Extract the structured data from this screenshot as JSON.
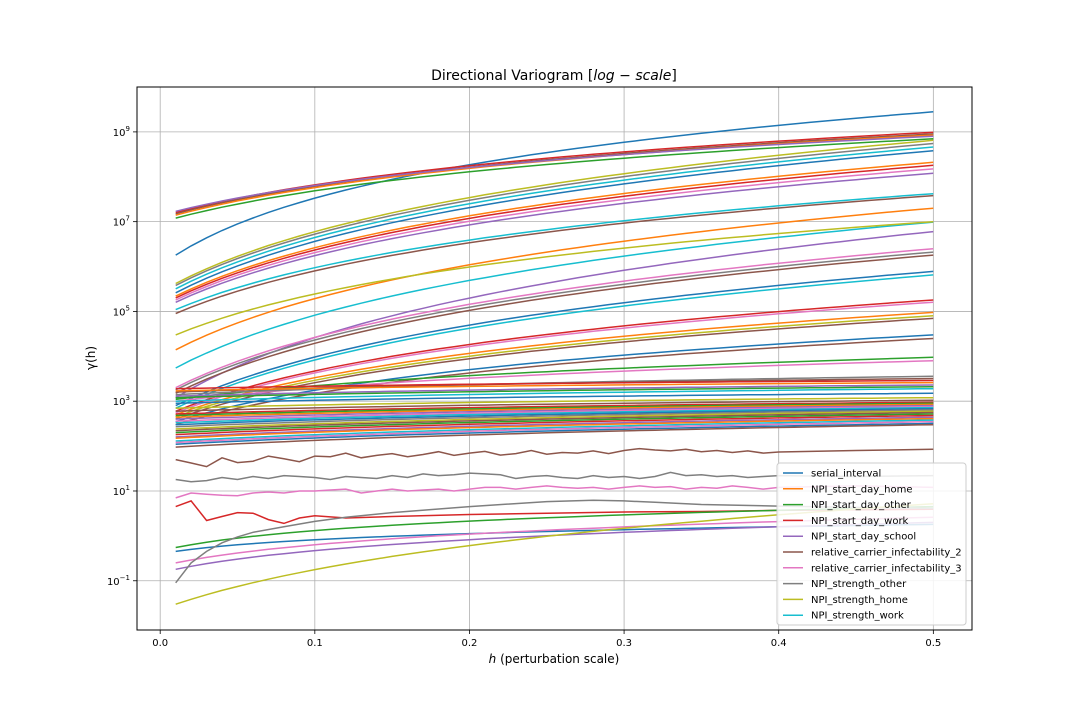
{
  "chart_data": {
    "type": "line",
    "title": "Directional Variogram [log − scale]",
    "title_prefix": "Directional Variogram [",
    "title_math": "log − scale",
    "title_suffix": "]",
    "xlabel": "h (perturbation scale)",
    "xlabel_math": "h",
    "xlabel_rest": " (perturbation scale)",
    "ylabel": "γ(h)",
    "yscale": "log",
    "xlim": [
      -0.015,
      0.525
    ],
    "ylim": [
      0.008,
      10000000000
    ],
    "grid": true,
    "legend_position": "lower-right",
    "x_ticks": [
      {
        "value": 0.0,
        "label": "0.0"
      },
      {
        "value": 0.1,
        "label": "0.1"
      },
      {
        "value": 0.2,
        "label": "0.2"
      },
      {
        "value": 0.3,
        "label": "0.3"
      },
      {
        "value": 0.4,
        "label": "0.4"
      },
      {
        "value": 0.5,
        "label": "0.5"
      }
    ],
    "y_ticks": [
      {
        "value": 0.1,
        "base": "10",
        "exp": "−1"
      },
      {
        "value": 10,
        "base": "10",
        "exp": "1"
      },
      {
        "value": 1000,
        "base": "10",
        "exp": "3"
      },
      {
        "value": 100000,
        "base": "10",
        "exp": "5"
      },
      {
        "value": 10000000,
        "base": "10",
        "exp": "7"
      },
      {
        "value": 1000000000,
        "base": "10",
        "exp": "9"
      }
    ],
    "legend": [
      {
        "name": "serial_interval",
        "color": "#1f77b4"
      },
      {
        "name": "NPI_start_day_home",
        "color": "#ff7f0e"
      },
      {
        "name": "NPI_start_day_other",
        "color": "#2ca02c"
      },
      {
        "name": "NPI_start_day_work",
        "color": "#d62728"
      },
      {
        "name": "NPI_start_day_school",
        "color": "#9467bd"
      },
      {
        "name": "relative_carrier_infectability_2",
        "color": "#8c564b"
      },
      {
        "name": "relative_carrier_infectability_3",
        "color": "#e377c2"
      },
      {
        "name": "NPI_strength_other",
        "color": "#7f7f7f"
      },
      {
        "name": "NPI_strength_home",
        "color": "#bcbd22"
      },
      {
        "name": "NPI_strength_work",
        "color": "#17becf"
      }
    ],
    "series": [
      {
        "color": "#1f77b4",
        "kind": "smooth",
        "y_start": 1800000,
        "y_end": 2800000000,
        "shape": 0.07
      },
      {
        "color": "#d62728",
        "kind": "smooth",
        "y_start": 16000000,
        "y_end": 980000000,
        "shape": 0.12
      },
      {
        "color": "#8c564b",
        "kind": "smooth",
        "y_start": 15000000,
        "y_end": 900000000,
        "shape": 0.12
      },
      {
        "color": "#ff7f0e",
        "kind": "smooth",
        "y_start": 14000000,
        "y_end": 850000000,
        "shape": 0.12
      },
      {
        "color": "#9467bd",
        "kind": "smooth",
        "y_start": 17000000,
        "y_end": 800000000,
        "shape": 0.12
      },
      {
        "color": "#2ca02c",
        "kind": "smooth",
        "y_start": 12000000,
        "y_end": 700000000,
        "shape": 0.12
      },
      {
        "color": "#bcbd22",
        "kind": "smooth",
        "y_start": 420000,
        "y_end": 650000000,
        "shape": 0.1
      },
      {
        "color": "#7f7f7f",
        "kind": "smooth",
        "y_start": 380000,
        "y_end": 550000000,
        "shape": 0.1
      },
      {
        "color": "#17becf",
        "kind": "smooth",
        "y_start": 320000,
        "y_end": 460000000,
        "shape": 0.1
      },
      {
        "color": "#1f77b4",
        "kind": "smooth",
        "y_start": 260000,
        "y_end": 380000000,
        "shape": 0.1
      },
      {
        "color": "#ff7f0e",
        "kind": "smooth",
        "y_start": 220000,
        "y_end": 210000000,
        "shape": 0.1
      },
      {
        "color": "#d62728",
        "kind": "smooth",
        "y_start": 200000,
        "y_end": 180000000,
        "shape": 0.1
      },
      {
        "color": "#e377c2",
        "kind": "smooth",
        "y_start": 180000,
        "y_end": 150000000,
        "shape": 0.1
      },
      {
        "color": "#9467bd",
        "kind": "smooth",
        "y_start": 160000,
        "y_end": 120000000,
        "shape": 0.1
      },
      {
        "color": "#17becf",
        "kind": "smooth",
        "y_start": 110000,
        "y_end": 42000000,
        "shape": 0.1
      },
      {
        "color": "#8c564b",
        "kind": "smooth",
        "y_start": 90000,
        "y_end": 38000000,
        "shape": 0.1
      },
      {
        "color": "#ff7f0e",
        "kind": "smooth",
        "y_start": 14000,
        "y_end": 20000000,
        "shape": 0.1
      },
      {
        "color": "#17becf",
        "kind": "smooth",
        "y_start": 5500,
        "y_end": 9800000,
        "shape": 0.1
      },
      {
        "color": "#bcbd22",
        "kind": "smooth",
        "y_start": 30000,
        "y_end": 10000000,
        "shape": 0.1
      },
      {
        "color": "#9467bd",
        "kind": "smooth",
        "y_start": 1200,
        "y_end": 6000000,
        "shape": 0.1
      },
      {
        "color": "#e377c2",
        "kind": "smooth",
        "y_start": 2000,
        "y_end": 2500000,
        "shape": 0.1
      },
      {
        "color": "#7f7f7f",
        "kind": "smooth",
        "y_start": 1800,
        "y_end": 2100000,
        "shape": 0.1
      },
      {
        "color": "#8c564b",
        "kind": "smooth",
        "y_start": 1500,
        "y_end": 1800000,
        "shape": 0.1
      },
      {
        "color": "#1f77b4",
        "kind": "smooth",
        "y_start": 800,
        "y_end": 780000,
        "shape": 0.1
      },
      {
        "color": "#17becf",
        "kind": "smooth",
        "y_start": 700,
        "y_end": 650000,
        "shape": 0.1
      },
      {
        "color": "#d62728",
        "kind": "smooth",
        "y_start": 600,
        "y_end": 180000,
        "shape": 0.1
      },
      {
        "color": "#e377c2",
        "kind": "smooth",
        "y_start": 550,
        "y_end": 160000,
        "shape": 0.1
      },
      {
        "color": "#ff7f0e",
        "kind": "smooth",
        "y_start": 500,
        "y_end": 95000,
        "shape": 0.1
      },
      {
        "color": "#bcbd22",
        "kind": "smooth",
        "y_start": 450,
        "y_end": 80000,
        "shape": 0.1
      },
      {
        "color": "#8c564b",
        "kind": "smooth",
        "y_start": 400,
        "y_end": 70000,
        "shape": 0.1
      },
      {
        "color": "#1f77b4",
        "kind": "smooth",
        "y_start": 350,
        "y_end": 30000,
        "shape": 0.1
      },
      {
        "color": "#8c564b",
        "kind": "smooth",
        "y_start": 300,
        "y_end": 25000,
        "shape": 0.1
      },
      {
        "color": "#2ca02c",
        "kind": "smooth",
        "y_start": 1100,
        "y_end": 9500,
        "shape": 0.15
      },
      {
        "color": "#e377c2",
        "kind": "smooth",
        "y_start": 1000,
        "y_end": 8000,
        "shape": 0.15
      },
      {
        "color": "#7f7f7f",
        "kind": "smooth",
        "y_start": 1400,
        "y_end": 3600,
        "shape": 0.2
      },
      {
        "color": "#8c564b",
        "kind": "smooth",
        "y_start": 1600,
        "y_end": 3200,
        "shape": 0.2
      },
      {
        "color": "#d62728",
        "kind": "smooth",
        "y_start": 1900,
        "y_end": 2900,
        "shape": 0.2
      },
      {
        "color": "#ff7f0e",
        "kind": "smooth",
        "y_start": 1700,
        "y_end": 2600,
        "shape": 0.2
      },
      {
        "color": "#9467bd",
        "kind": "smooth",
        "y_start": 1300,
        "y_end": 2300,
        "shape": 0.2
      },
      {
        "color": "#2ca02c",
        "kind": "smooth",
        "y_start": 1200,
        "y_end": 2100,
        "shape": 0.2
      },
      {
        "color": "#17becf",
        "kind": "smooth",
        "y_start": 1000,
        "y_end": 1900,
        "shape": 0.2
      },
      {
        "color": "#1f77b4",
        "kind": "smooth",
        "y_start": 900,
        "y_end": 1500,
        "shape": 0.2
      },
      {
        "color": "#bcbd22",
        "kind": "smooth",
        "y_start": 700,
        "y_end": 1200,
        "shape": 0.2
      },
      {
        "color": "#8c564b",
        "kind": "smooth",
        "y_start": 600,
        "y_end": 1050,
        "shape": 0.2
      },
      {
        "color": "#d62728",
        "kind": "smooth",
        "y_start": 520,
        "y_end": 950,
        "shape": 0.2
      },
      {
        "color": "#2ca02c",
        "kind": "smooth",
        "y_start": 480,
        "y_end": 900,
        "shape": 0.2
      },
      {
        "color": "#ff7f0e",
        "kind": "smooth",
        "y_start": 440,
        "y_end": 850,
        "shape": 0.2
      },
      {
        "color": "#9467bd",
        "kind": "smooth",
        "y_start": 400,
        "y_end": 800,
        "shape": 0.2
      },
      {
        "color": "#e377c2",
        "kind": "smooth",
        "y_start": 360,
        "y_end": 760,
        "shape": 0.2
      },
      {
        "color": "#17becf",
        "kind": "smooth",
        "y_start": 330,
        "y_end": 720,
        "shape": 0.2
      },
      {
        "color": "#1f77b4",
        "kind": "smooth",
        "y_start": 300,
        "y_end": 680,
        "shape": 0.2
      },
      {
        "color": "#7f7f7f",
        "kind": "smooth",
        "y_start": 270,
        "y_end": 640,
        "shape": 0.2
      },
      {
        "color": "#bcbd22",
        "kind": "smooth",
        "y_start": 240,
        "y_end": 600,
        "shape": 0.2
      },
      {
        "color": "#8c564b",
        "kind": "smooth",
        "y_start": 220,
        "y_end": 560,
        "shape": 0.2
      },
      {
        "color": "#2ca02c",
        "kind": "smooth",
        "y_start": 200,
        "y_end": 520,
        "shape": 0.2
      },
      {
        "color": "#d62728",
        "kind": "smooth",
        "y_start": 180,
        "y_end": 480,
        "shape": 0.2
      },
      {
        "color": "#9467bd",
        "kind": "smooth",
        "y_start": 160,
        "y_end": 440,
        "shape": 0.2
      },
      {
        "color": "#ff7f0e",
        "kind": "smooth",
        "y_start": 150,
        "y_end": 410,
        "shape": 0.2
      },
      {
        "color": "#17becf",
        "kind": "smooth",
        "y_start": 130,
        "y_end": 380,
        "shape": 0.2
      },
      {
        "color": "#e377c2",
        "kind": "smooth",
        "y_start": 120,
        "y_end": 350,
        "shape": 0.2
      },
      {
        "color": "#1f77b4",
        "kind": "smooth",
        "y_start": 110,
        "y_end": 320,
        "shape": 0.2
      },
      {
        "color": "#8c564b",
        "kind": "smooth",
        "y_start": 95,
        "y_end": 300,
        "shape": 0.2
      },
      {
        "color": "#8c564b",
        "kind": "points",
        "x": [
          0.01,
          0.02,
          0.03,
          0.04,
          0.05,
          0.06,
          0.07,
          0.08,
          0.09,
          0.1,
          0.11,
          0.12,
          0.13,
          0.14,
          0.15,
          0.16,
          0.17,
          0.18,
          0.19,
          0.2,
          0.21,
          0.22,
          0.23,
          0.24,
          0.25,
          0.26,
          0.27,
          0.28,
          0.29,
          0.3,
          0.31,
          0.32,
          0.33,
          0.34,
          0.35,
          0.36,
          0.37,
          0.38,
          0.39,
          0.4,
          0.45,
          0.5
        ],
        "y": [
          50,
          42,
          35,
          55,
          43,
          46,
          60,
          52,
          45,
          60,
          58,
          70,
          55,
          62,
          68,
          58,
          65,
          75,
          62,
          70,
          76,
          63,
          68,
          80,
          66,
          72,
          70,
          78,
          68,
          80,
          88,
          82,
          78,
          85,
          75,
          80,
          72,
          78,
          70,
          74,
          80,
          85
        ]
      },
      {
        "color": "#7f7f7f",
        "kind": "points",
        "x": [
          0.01,
          0.02,
          0.03,
          0.04,
          0.05,
          0.06,
          0.07,
          0.08,
          0.09,
          0.1,
          0.11,
          0.12,
          0.13,
          0.14,
          0.15,
          0.16,
          0.17,
          0.18,
          0.19,
          0.2,
          0.21,
          0.22,
          0.23,
          0.24,
          0.25,
          0.26,
          0.27,
          0.28,
          0.29,
          0.3,
          0.31,
          0.32,
          0.33,
          0.34,
          0.35,
          0.36,
          0.37,
          0.38,
          0.39,
          0.4,
          0.45,
          0.5
        ],
        "y": [
          18,
          16,
          17,
          20,
          18,
          21,
          19,
          22,
          21,
          20,
          18,
          21,
          20,
          19,
          22,
          20,
          24,
          22,
          23,
          25,
          24,
          23,
          19,
          21,
          22,
          20,
          19,
          22,
          20,
          21,
          19,
          21,
          26,
          22,
          23,
          21,
          22,
          20,
          21,
          22,
          21,
          22
        ]
      },
      {
        "color": "#e377c2",
        "kind": "points",
        "x": [
          0.01,
          0.02,
          0.03,
          0.04,
          0.05,
          0.06,
          0.07,
          0.08,
          0.09,
          0.1,
          0.11,
          0.12,
          0.13,
          0.14,
          0.15,
          0.16,
          0.17,
          0.18,
          0.19,
          0.2,
          0.21,
          0.22,
          0.23,
          0.24,
          0.25,
          0.26,
          0.27,
          0.28,
          0.29,
          0.3,
          0.31,
          0.32,
          0.33,
          0.34,
          0.35,
          0.36,
          0.37,
          0.38,
          0.39,
          0.4,
          0.45,
          0.5
        ],
        "y": [
          7,
          9,
          8.5,
          8,
          7.8,
          9,
          9.5,
          9,
          10,
          10,
          10.5,
          11,
          9,
          10,
          11,
          10,
          10.5,
          11,
          10,
          11,
          12,
          12,
          11,
          12,
          13,
          12,
          11.5,
          12,
          11,
          12,
          13,
          12,
          12.5,
          11,
          12,
          11.5,
          13,
          12,
          11,
          12,
          13,
          12
        ]
      },
      {
        "color": "#d62728",
        "kind": "points",
        "x": [
          0.01,
          0.02,
          0.03,
          0.04,
          0.05,
          0.06,
          0.07,
          0.08,
          0.09,
          0.1,
          0.12,
          0.15,
          0.2,
          0.25,
          0.3,
          0.35,
          0.4,
          0.45,
          0.5
        ],
        "y": [
          4.5,
          6,
          2.2,
          2.7,
          3.3,
          3.2,
          2.3,
          1.9,
          2.5,
          2.8,
          2.5,
          2.7,
          3,
          3.2,
          3.4,
          3.5,
          3.7,
          3.8,
          3.9
        ]
      },
      {
        "color": "#2ca02c",
        "kind": "smooth",
        "y_start": 0.55,
        "y_end": 4.5,
        "shape": 0.06
      },
      {
        "color": "#1f77b4",
        "kind": "smooth",
        "y_start": 0.45,
        "y_end": 1.8,
        "shape": 0.05
      },
      {
        "color": "#9467bd",
        "kind": "smooth",
        "y_start": 0.18,
        "y_end": 2.0,
        "shape": 0.07
      },
      {
        "color": "#e377c2",
        "kind": "smooth",
        "y_start": 0.25,
        "y_end": 2.6,
        "shape": 0.07
      },
      {
        "color": "#7f7f7f",
        "kind": "points",
        "x": [
          0.01,
          0.02,
          0.03,
          0.04,
          0.05,
          0.06,
          0.08,
          0.1,
          0.12,
          0.15,
          0.2,
          0.25,
          0.28,
          0.3,
          0.32,
          0.35,
          0.4,
          0.45,
          0.5
        ],
        "y": [
          0.09,
          0.25,
          0.45,
          0.7,
          0.95,
          1.2,
          1.6,
          2.1,
          2.6,
          3.3,
          4.5,
          5.8,
          6.2,
          6.0,
          5.6,
          5.0,
          4.6,
          4.3,
          4.1
        ]
      },
      {
        "color": "#bcbd22",
        "kind": "smooth",
        "y_start": 0.03,
        "y_end": 5.2,
        "shape": 0.12
      }
    ]
  }
}
